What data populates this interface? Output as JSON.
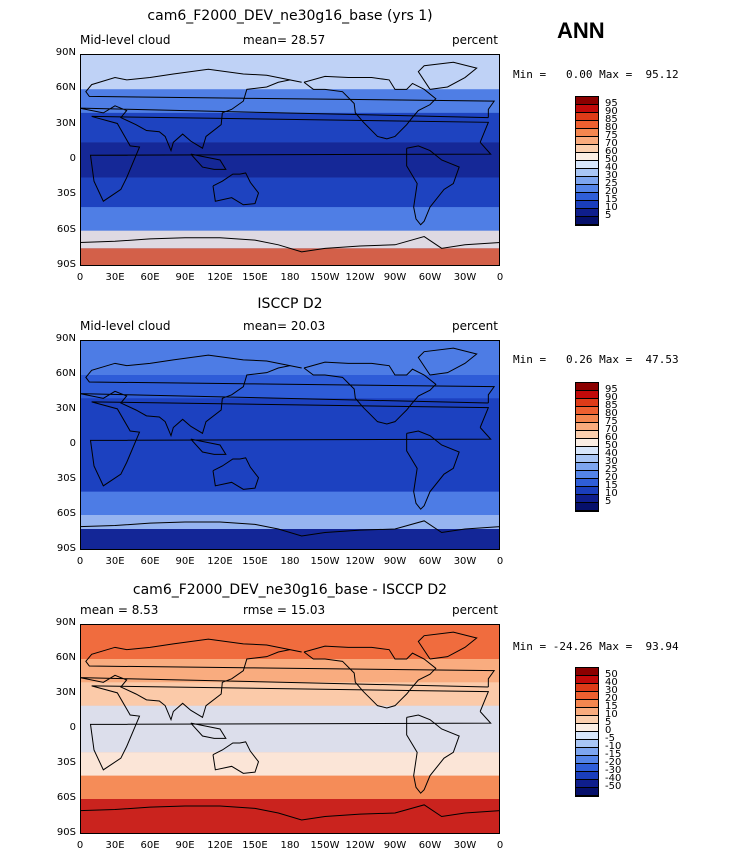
{
  "season": "ANN",
  "panels": [
    {
      "title": "cam6_F2000_DEV_ne30g16_base (yrs 1)",
      "left_label": "Mid-level cloud",
      "stat1": "mean=  28.57",
      "stat2": "",
      "units": "percent",
      "minmax": "Min =   0.00 Max =  95.12",
      "colorbar": [
        "95",
        "90",
        "85",
        "80",
        "75",
        "70",
        "60",
        "50",
        "40",
        "30",
        "25",
        "20",
        "15",
        "10",
        "5"
      ],
      "colorbar_colors": [
        "#8b0000",
        "#c20a0a",
        "#de3b18",
        "#ee6030",
        "#f4864f",
        "#f9ab7d",
        "#fbcfae",
        "#fbeee4",
        "#d7e6fb",
        "#a9c6f5",
        "#7da5ef",
        "#5484e8",
        "#2f5ed8",
        "#1a3ebc",
        "#0f1e8c",
        "#06106b"
      ],
      "base_color": "#3a62d6"
    },
    {
      "title": "ISCCP D2",
      "left_label": "Mid-level cloud",
      "stat1": "mean=  20.03",
      "stat2": "",
      "units": "percent",
      "minmax": "Min =   0.26 Max =  47.53",
      "colorbar": [
        "95",
        "90",
        "85",
        "80",
        "75",
        "70",
        "60",
        "50",
        "40",
        "30",
        "25",
        "20",
        "15",
        "10",
        "5"
      ],
      "colorbar_colors": [
        "#8b0000",
        "#c20a0a",
        "#de3b18",
        "#ee6030",
        "#f4864f",
        "#f9ab7d",
        "#fbcfae",
        "#fbeee4",
        "#d7e6fb",
        "#a9c6f5",
        "#7da5ef",
        "#5484e8",
        "#2f5ed8",
        "#1a3ebc",
        "#0f1e8c",
        "#06106b"
      ],
      "base_color": "#2a54d6"
    },
    {
      "title": "cam6_F2000_DEV_ne30g16_base - ISCCP D2",
      "left_label": "mean =   8.53",
      "stat1": "rmse =  15.03",
      "stat2": "",
      "units": "percent",
      "minmax": "Min = -24.26 Max =  93.94",
      "colorbar": [
        "50",
        "40",
        "30",
        "20",
        "15",
        "10",
        "5",
        "0",
        "-5",
        "-10",
        "-15",
        "-20",
        "-30",
        "-40",
        "-50"
      ],
      "colorbar_colors": [
        "#8b0000",
        "#c20a0a",
        "#de3b18",
        "#ee6030",
        "#f4864f",
        "#f9ab7d",
        "#fbcfae",
        "#fbeee4",
        "#d7e6fb",
        "#a9c6f5",
        "#7da5ef",
        "#5484e8",
        "#2f5ed8",
        "#1a3ebc",
        "#0f1e8c",
        "#06106b"
      ],
      "base_color": "#f5b08f"
    }
  ],
  "lat_ticks": [
    "90N",
    "60N",
    "30N",
    "0",
    "30S",
    "60S",
    "90S"
  ],
  "lon_ticks": [
    "0",
    "30E",
    "60E",
    "90E",
    "120E",
    "150E",
    "180",
    "150W",
    "120W",
    "90W",
    "60W",
    "30W",
    "0"
  ]
}
